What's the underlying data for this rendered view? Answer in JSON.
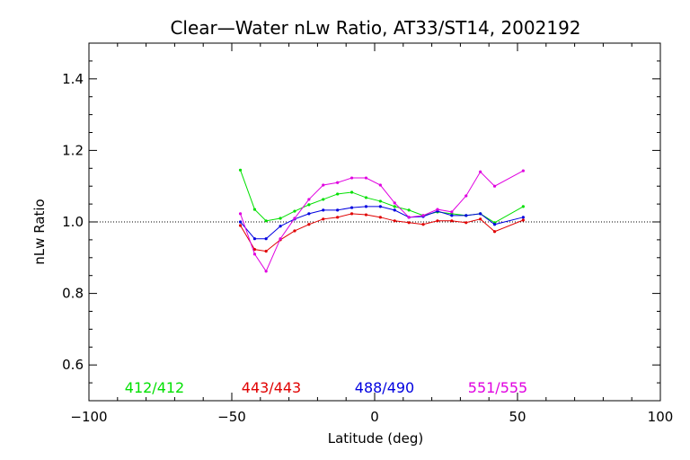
{
  "chart_data": {
    "type": "line",
    "title": "Clear—Water nLw Ratio, AT33/ST14, 2002192",
    "xlabel": "Latitude (deg)",
    "ylabel": "nLw Ratio",
    "xlim": [
      -100,
      100
    ],
    "ylim": [
      0.5,
      1.5
    ],
    "xticks": [
      -100,
      -50,
      0,
      50,
      100
    ],
    "xtick_labels": [
      "−100",
      "−50",
      "0",
      "50",
      "100"
    ],
    "yticks": [
      0.6,
      0.8,
      1.0,
      1.2,
      1.4
    ],
    "ytick_labels": [
      "0.6",
      "0.8",
      "1.0",
      "1.2",
      "1.4"
    ],
    "reference_line": 1.0,
    "grid": false,
    "legend_placement": "bottom",
    "x": [
      -47,
      -42,
      -38,
      -33,
      -28,
      -23,
      -18,
      -13,
      -8,
      -3,
      2,
      7,
      12,
      17,
      22,
      27,
      32,
      37,
      42,
      52
    ],
    "series": [
      {
        "name": "412/412",
        "color": "#00e000",
        "values": [
          1.145,
          1.035,
          1.003,
          1.01,
          1.03,
          1.048,
          1.063,
          1.078,
          1.083,
          1.068,
          1.058,
          1.043,
          1.033,
          1.018,
          1.028,
          1.023,
          1.018,
          1.023,
          0.998,
          1.043
        ]
      },
      {
        "name": "443/443",
        "color": "#e00000",
        "values": [
          0.99,
          0.923,
          0.918,
          0.95,
          0.975,
          0.993,
          1.008,
          1.013,
          1.023,
          1.02,
          1.013,
          1.003,
          0.998,
          0.993,
          1.003,
          1.003,
          0.998,
          1.008,
          0.973,
          1.005
        ]
      },
      {
        "name": "488/490",
        "color": "#0000e0",
        "values": [
          1.0,
          0.953,
          0.953,
          0.988,
          1.008,
          1.023,
          1.033,
          1.033,
          1.04,
          1.043,
          1.043,
          1.033,
          1.013,
          1.015,
          1.03,
          1.018,
          1.018,
          1.023,
          0.993,
          1.013
        ]
      },
      {
        "name": "551/555",
        "color": "#e000e0",
        "values": [
          1.023,
          0.91,
          0.862,
          0.953,
          1.01,
          1.063,
          1.103,
          1.11,
          1.123,
          1.123,
          1.103,
          1.053,
          1.013,
          1.018,
          1.035,
          1.028,
          1.073,
          1.14,
          1.1,
          1.143
        ]
      }
    ]
  }
}
